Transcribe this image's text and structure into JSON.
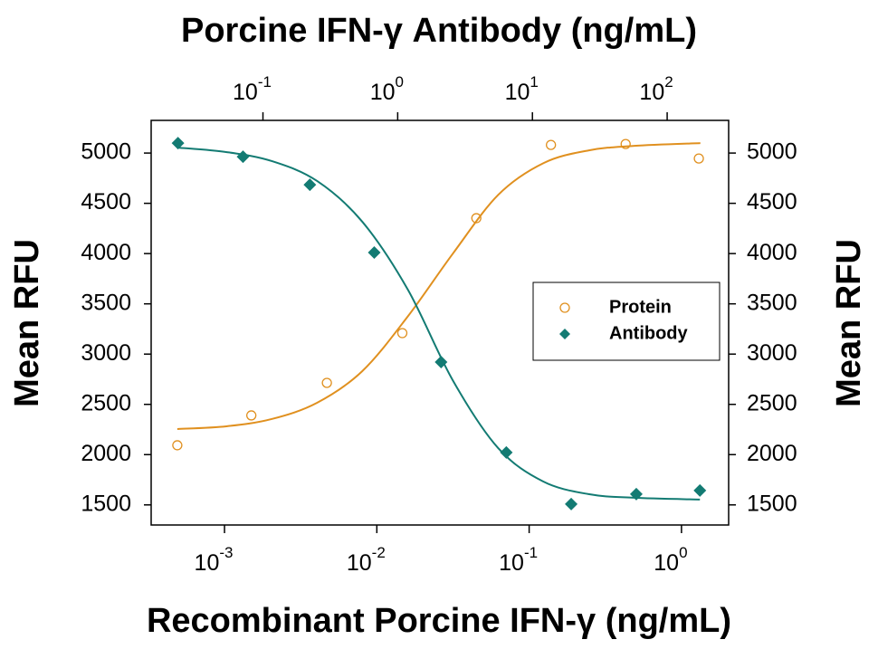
{
  "chart_data": {
    "type": "scatter",
    "title": "Porcine IFN-γ Antibody (ng/mL)",
    "x_label": "Recombinant Porcine IFN-γ (ng/mL)",
    "y_label": "Mean RFU",
    "y2_label": "Mean RFU",
    "xscale": "log",
    "x2scale": "log",
    "xlim": [
      0.00033,
      2.04
    ],
    "x2lim": [
      0.0148,
      286
    ],
    "ylim": [
      1300,
      5325
    ],
    "y2lim": [
      1300,
      5325
    ],
    "xticks": [
      {
        "value": 0.001,
        "label": "10",
        "exponent": "-3"
      },
      {
        "value": 0.01,
        "label": "10",
        "exponent": "-2"
      },
      {
        "value": 0.1,
        "label": "10",
        "exponent": "-1"
      },
      {
        "value": 1,
        "label": "10",
        "exponent": "0"
      }
    ],
    "x2ticks": [
      {
        "value": 0.1,
        "label": "10",
        "exponent": "-1"
      },
      {
        "value": 1,
        "label": "10",
        "exponent": "0"
      },
      {
        "value": 10,
        "label": "10",
        "exponent": "1"
      },
      {
        "value": 100,
        "label": "10",
        "exponent": "2"
      }
    ],
    "yticks": [
      1500,
      2000,
      2500,
      3000,
      3500,
      4000,
      4500,
      5000
    ],
    "y2ticks": [
      1500,
      2000,
      2500,
      3000,
      3500,
      4000,
      4500,
      5000
    ],
    "legend": "center right",
    "series": [
      {
        "name": "Protein",
        "color": "#e0901f",
        "marker": "circle",
        "xaxis": "x",
        "x": [
          0.00049,
          0.0015,
          0.0047,
          0.0147,
          0.045,
          0.139,
          0.43,
          1.3
        ],
        "values": [
          2093,
          2390,
          2714,
          3209,
          4352,
          5081,
          5090,
          4946
        ],
        "curve": {
          "x": [
            0.00049,
            0.00103,
            0.00204,
            0.00405,
            0.00803,
            0.0159,
            0.0316,
            0.0628,
            0.1245,
            0.247,
            0.49,
            1.33
          ],
          "values": [
            2255,
            2282,
            2354,
            2516,
            2831,
            3371,
            4001,
            4586,
            4901,
            5027,
            5072,
            5099
          ]
        }
      },
      {
        "name": "Antibody",
        "color": "#137b73",
        "marker": "diamond",
        "xaxis": "x2",
        "x": [
          0.0234,
          0.0711,
          0.223,
          0.67,
          2.1,
          6.4,
          19.4,
          59,
          175
        ],
        "values": [
          5099,
          4964,
          4685,
          4010,
          2921,
          2021,
          1508,
          1607,
          1643
        ],
        "curve": {
          "x": [
            0.0234,
            0.054,
            0.117,
            0.253,
            0.547,
            1.19,
            2.56,
            5.56,
            12.0,
            26.1,
            56.5,
            175
          ],
          "values": [
            5054,
            5009,
            4919,
            4721,
            4316,
            3641,
            2741,
            2066,
            1733,
            1607,
            1571,
            1553
          ]
        }
      }
    ]
  }
}
